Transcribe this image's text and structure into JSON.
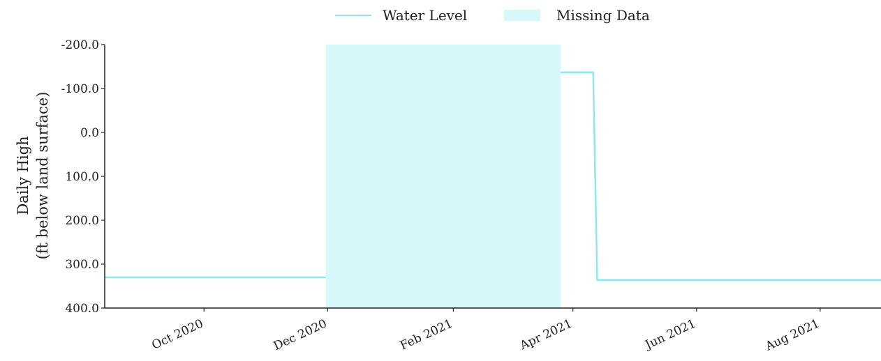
{
  "chart_data": {
    "type": "line",
    "title": "",
    "xlabel": "",
    "ylabel_lines": [
      "Daily High",
      "(ft below land surface)"
    ],
    "ylim": [
      400,
      -200
    ],
    "y_reversed": true,
    "y_ticks": [
      -200,
      -100,
      0,
      100,
      200,
      300,
      400
    ],
    "y_tick_labels": [
      "-200.0",
      "-100.0",
      "0.0",
      "100.0",
      "200.0",
      "300.0",
      "400.0"
    ],
    "xlim": [
      "2020-08-13",
      "2021-08-31"
    ],
    "x_ticks": [
      "2020-10-01",
      "2020-12-01",
      "2021-02-01",
      "2021-04-01",
      "2021-06-01",
      "2021-08-01"
    ],
    "x_tick_labels": [
      "Oct 2020",
      "Dec 2020",
      "Feb 2021",
      "Apr 2021",
      "Jun 2021",
      "Aug 2021"
    ],
    "grid": false,
    "legend_position": "top-center",
    "legend": [
      {
        "label": "Water Level",
        "kind": "line",
        "color": "#8fe8ec"
      },
      {
        "label": "Missing Data",
        "kind": "band",
        "color": "#d6f8f9"
      }
    ],
    "series": [
      {
        "name": "Water Level",
        "color": "#8fe8ec",
        "segments": [
          [
            {
              "x": "2020-08-13",
              "y": 330
            },
            {
              "x": "2020-11-30",
              "y": 330
            }
          ],
          [
            {
              "x": "2021-03-26",
              "y": -137
            },
            {
              "x": "2021-04-11",
              "y": -137
            },
            {
              "x": "2021-04-13",
              "y": 336
            },
            {
              "x": "2021-08-31",
              "y": 336
            }
          ]
        ]
      }
    ],
    "missing_data": [
      {
        "start": "2020-11-30",
        "end": "2021-03-26"
      }
    ],
    "colors": {
      "axis": "#222222",
      "missing": "#d6f8f9",
      "line": "#8fe8ec"
    }
  }
}
